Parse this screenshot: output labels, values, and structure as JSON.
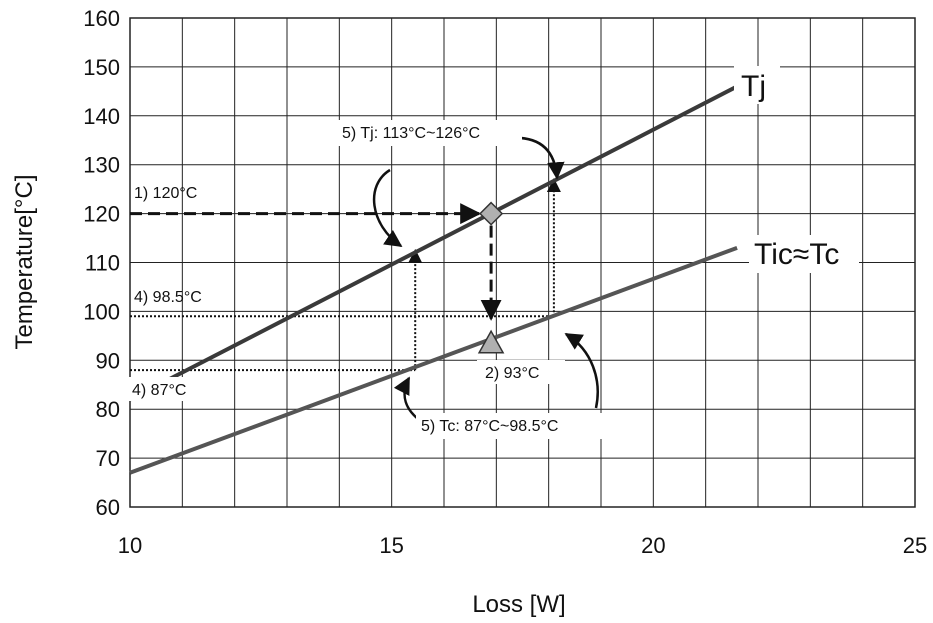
{
  "chart_data": {
    "type": "line",
    "xlabel": "Loss [W]",
    "ylabel": "Temperature[°C]",
    "xlim": [
      10,
      25
    ],
    "ylim": [
      60,
      160
    ],
    "xticks": [
      10,
      15,
      20,
      25
    ],
    "yticks": [
      60,
      70,
      80,
      90,
      100,
      110,
      120,
      130,
      140,
      150,
      160
    ],
    "grid": true,
    "series": [
      {
        "name": "Tj",
        "color": "#3a3a3a",
        "x": [
          10,
          21.6
        ],
        "y": [
          82,
          146
        ]
      },
      {
        "name": "Tic≈Tc",
        "color": "#555555",
        "x": [
          10,
          21.6
        ],
        "y": [
          67,
          113
        ]
      }
    ],
    "markers": [
      {
        "shape": "diamond",
        "x": 16.9,
        "y": 120,
        "color": "#b0b0b0"
      },
      {
        "shape": "triangle",
        "x": 16.9,
        "y": 93.5,
        "color": "#b0b0b0"
      }
    ],
    "annotations": {
      "a1": "1) 120°C",
      "a2": "2) 93°C",
      "a4a": "4) 98.5°C",
      "a4b": "4) 87°C",
      "a5a": "5) Tj: 113°C~126°C",
      "a5b": "5) Tc: 87°C~98.5°C"
    }
  }
}
